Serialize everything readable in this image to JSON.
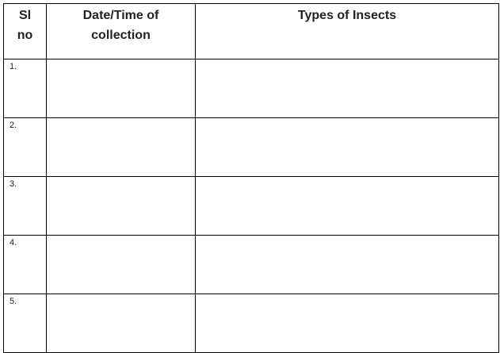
{
  "table": {
    "headers": [
      "Sl no",
      "Date/Time of collection",
      "Types of Insects"
    ],
    "header_lines": [
      [
        "Sl",
        "no"
      ],
      [
        "Date/Time of",
        "collection"
      ],
      [
        "Types of Insects"
      ]
    ],
    "rows": [
      {
        "sl": "1.",
        "datetime": "",
        "insects": ""
      },
      {
        "sl": "2.",
        "datetime": "",
        "insects": ""
      },
      {
        "sl": "3.",
        "datetime": "",
        "insects": ""
      },
      {
        "sl": "4.",
        "datetime": "",
        "insects": ""
      },
      {
        "sl": "5.",
        "datetime": "",
        "insects": ""
      }
    ]
  }
}
